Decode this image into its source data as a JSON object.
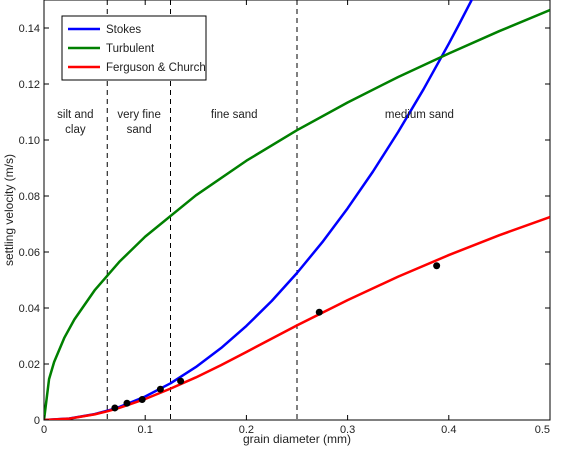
{
  "chart_data": {
    "type": "line",
    "xlabel": "grain diameter (mm)",
    "ylabel": "settling velocity (m/s)",
    "xlim": [
      0,
      0.5
    ],
    "ylim": [
      0,
      0.15
    ],
    "x_ticks": [
      0,
      0.1,
      0.2,
      0.3,
      0.4,
      0.5
    ],
    "x_tick_labels": [
      "0",
      "0.1",
      "0.2",
      "0.3",
      "0.4",
      "0.5"
    ],
    "y_ticks": [
      0,
      0.02,
      0.04,
      0.06,
      0.08,
      0.1,
      0.12,
      0.14
    ],
    "y_tick_labels": [
      "0",
      "0.02",
      "0.04",
      "0.06",
      "0.08",
      "0.10",
      "0.12",
      "0.14"
    ],
    "grid": false,
    "legend_position": "top-left",
    "series": [
      {
        "name": "Stokes",
        "color": "#0000ff",
        "points": [
          [
            0.0,
            0.0
          ],
          [
            0.025,
            0.00053
          ],
          [
            0.05,
            0.0021
          ],
          [
            0.0625,
            0.0033
          ],
          [
            0.075,
            0.0047
          ],
          [
            0.1,
            0.0084
          ],
          [
            0.125,
            0.0131
          ],
          [
            0.15,
            0.0189
          ],
          [
            0.175,
            0.0257
          ],
          [
            0.2,
            0.0336
          ],
          [
            0.225,
            0.0425
          ],
          [
            0.25,
            0.0525
          ],
          [
            0.275,
            0.0635
          ],
          [
            0.3,
            0.0756
          ],
          [
            0.325,
            0.0887
          ],
          [
            0.35,
            0.1029
          ],
          [
            0.375,
            0.1181
          ],
          [
            0.4,
            0.1344
          ],
          [
            0.41,
            0.1412
          ],
          [
            0.42,
            0.1482
          ],
          [
            0.4255,
            0.152
          ]
        ]
      },
      {
        "name": "Turbulent",
        "color": "#008000",
        "points": [
          [
            0.0,
            0.0
          ],
          [
            0.005,
            0.0146
          ],
          [
            0.01,
            0.0207
          ],
          [
            0.02,
            0.0293
          ],
          [
            0.03,
            0.0359
          ],
          [
            0.05,
            0.0463
          ],
          [
            0.075,
            0.0567
          ],
          [
            0.1,
            0.0655
          ],
          [
            0.15,
            0.0802
          ],
          [
            0.2,
            0.0926
          ],
          [
            0.25,
            0.1035
          ],
          [
            0.3,
            0.1134
          ],
          [
            0.35,
            0.1225
          ],
          [
            0.4,
            0.1309
          ],
          [
            0.45,
            0.1389
          ],
          [
            0.5,
            0.1464
          ]
        ]
      },
      {
        "name": "Ferguson & Church",
        "color": "#ff0000",
        "points": [
          [
            0.0,
            0.0
          ],
          [
            0.025,
            0.0005
          ],
          [
            0.05,
            0.002
          ],
          [
            0.0625,
            0.0031
          ],
          [
            0.075,
            0.0044
          ],
          [
            0.1,
            0.0075
          ],
          [
            0.125,
            0.0112
          ],
          [
            0.15,
            0.0152
          ],
          [
            0.175,
            0.0196
          ],
          [
            0.2,
            0.0243
          ],
          [
            0.25,
            0.0338
          ],
          [
            0.3,
            0.0428
          ],
          [
            0.35,
            0.0512
          ],
          [
            0.4,
            0.0589
          ],
          [
            0.45,
            0.066
          ],
          [
            0.5,
            0.0725
          ]
        ]
      }
    ],
    "observations": {
      "color": "#000000",
      "points": [
        [
          0.07,
          0.0043
        ],
        [
          0.082,
          0.006
        ],
        [
          0.097,
          0.0073
        ],
        [
          0.115,
          0.011
        ],
        [
          0.135,
          0.0139
        ],
        [
          0.272,
          0.0385
        ],
        [
          0.388,
          0.0551
        ]
      ]
    },
    "boundaries": [
      0.0625,
      0.125,
      0.25
    ],
    "regions": [
      {
        "lines": [
          "silt and",
          "clay"
        ],
        "x": 0.031
      },
      {
        "lines": [
          "very fine",
          "sand"
        ],
        "x": 0.094
      },
      {
        "lines": [
          "fine sand"
        ],
        "x": 0.188
      },
      {
        "lines": [
          "medium sand"
        ],
        "x": 0.371
      }
    ]
  }
}
